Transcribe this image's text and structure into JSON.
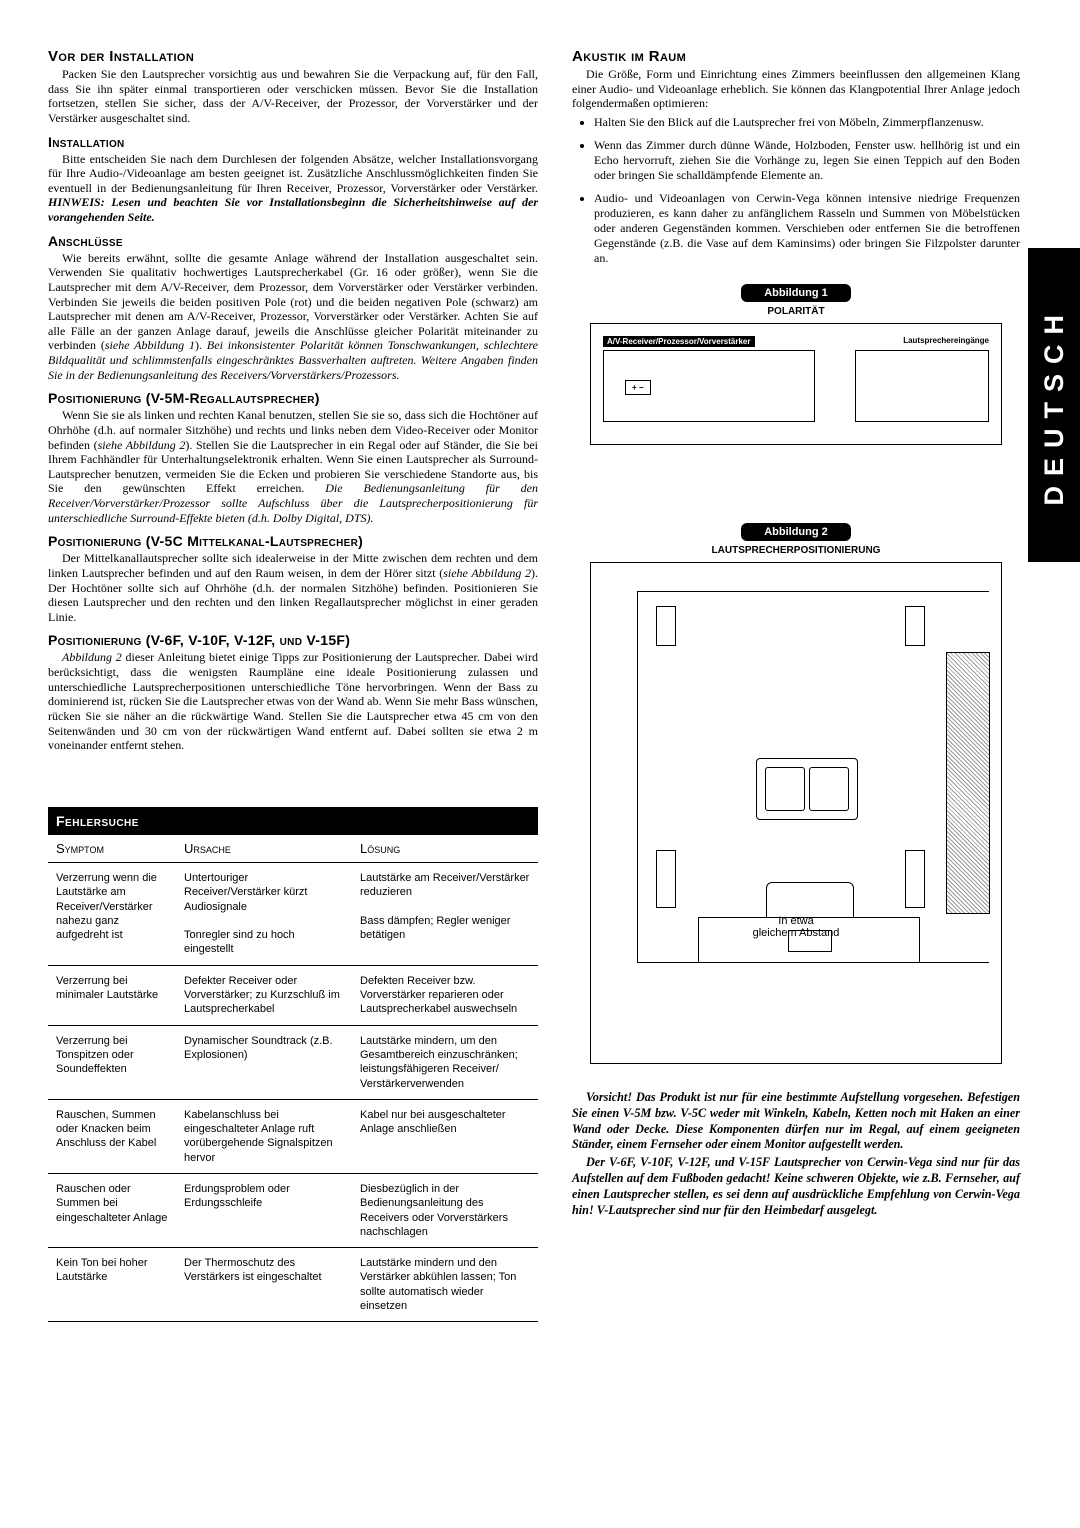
{
  "sidetab": "DEUTSCH",
  "left": {
    "h_vor": "Vor der Installation",
    "p_vor": "Packen Sie den Lautsprecher vorsichtig aus und bewahren Sie die Verpackung auf, für den Fall, dass Sie ihn später einmal transportieren oder verschicken müssen. Bevor Sie die Installation fortsetzen, stellen Sie sicher, dass der A/V-Receiver, der Prozessor, der Vorverstärker und der Verstärker ausgeschaltet sind.",
    "h_inst": "Installation",
    "p_inst_a": "Bitte entscheiden Sie nach dem Durchlesen der folgenden Absätze, welcher Installationsvorgang für Ihre Audio-/Videoanlage am besten geeignet ist. Zusätzliche Anschlussmöglichkeiten finden Sie eventuell in der Bedienungsanleitung für Ihren Receiver, Prozessor, Vorverstärker oder Verstärker. ",
    "p_inst_b": "HINWEIS: Lesen und beachten Sie vor Installationsbeginn die Sicherheitshinweise auf der vorangehenden Seite.",
    "h_ans": "Anschlüsse",
    "p_ans_a": "Wie bereits erwähnt, sollte die gesamte Anlage während der Installation ausgeschaltet sein. Verwenden Sie qualitativ hochwertiges Lautsprecherkabel (Gr. 16 oder größer), wenn Sie die Lautsprecher mit dem A/V-Receiver, dem Prozessor, dem Vorverstärker oder Verstärker verbinden. Verbinden Sie jeweils die beiden positiven Pole (rot) und die beiden negativen Pole (schwarz) am Lautsprecher mit denen am A/V-Receiver, Prozessor, Vorverstärker oder Verstärker. Achten Sie auf alle Fälle an der ganzen Anlage darauf, jeweils die Anschlüsse gleicher Polarität miteinander zu verbinden (",
    "p_ans_see": "siehe Abbildung 1",
    "p_ans_b": "). ",
    "p_ans_c": "Bei inkonsistenter Polarität können Tonschwankungen, schlechtere Bildqualität und schlimmstenfalls eingeschränktes Bassverhalten auftreten. Weitere Angaben finden Sie in der Bedienungsanleitung des Receivers/Vorverstärkers/Prozessors.",
    "h_pos5m": "Positionierung (V-5M-Regallautsprecher)",
    "p_pos5m_a": "Wenn Sie sie als linken und rechten Kanal benutzen, stellen Sie sie so, dass sich die Hochtöner auf Ohrhöhe (d.h. auf normaler Sitzhöhe) und rechts und links neben dem Video-Receiver oder Monitor befinden (",
    "p_pos5m_see": "siehe Abbildung 2",
    "p_pos5m_b": "). Stellen Sie die Lautsprecher in ein Regal oder auf Ständer, die Sie bei Ihrem Fachhändler für Unterhaltungselektronik erhalten. Wenn Sie einen Lautsprecher als Surround-Lautsprecher benutzen, vermeiden Sie die Ecken und probieren Sie verschiedene Standorte aus, bis Sie den gewünschten Effekt erreichen. ",
    "p_pos5m_c": "Die Bedienungsanleitung für den Receiver/Vorverstärker/Prozessor sollte Aufschluss über die Lautsprecherpositionierung für unterschiedliche Surround-Effekte bieten (d.h. Dolby Digital, DTS).",
    "h_pos5c": "Positionierung (V-5C Mittelkanal-Lautsprecher)",
    "p_pos5c_a": "Der Mittelkanallautsprecher sollte sich idealerweise in der Mitte zwischen dem rechten und dem linken Lautsprecher befinden und auf den Raum weisen, in dem der Hörer sitzt (",
    "p_pos5c_see": "siehe Abbildung 2",
    "p_pos5c_b": "). Der Hochtöner sollte sich auf Ohrhöhe (d.h. der normalen Sitzhöhe) befinden. Positionieren Sie diesen Lautsprecher und den rechten und den linken Regallautsprecher möglichst in einer geraden Linie.",
    "h_pos6f": "Positionierung (V-6F, V-10F, V-12F, und V-15F)",
    "p_pos6f_a": "Abbildung 2",
    "p_pos6f_b": " dieser Anleitung bietet einige Tipps zur Positionierung der Lautsprecher. Dabei wird berücksichtigt, dass die wenigsten Raumpläne eine ideale Positionierung zulassen und unterschiedliche Lautsprecherpositionen unterschiedliche Töne hervorbringen. Wenn der Bass zu dominierend ist, rücken Sie die Lautsprecher etwas von der Wand ab. Wenn Sie mehr Bass wünschen, rücken Sie sie näher an die rückwärtige Wand. Stellen Sie die Lautsprecher etwa 45 cm von den Seitenwänden und 30 cm von der rückwärtigen Wand entfernt auf. Dabei sollten sie etwa 2 m voneinander entfernt stehen."
  },
  "right": {
    "h_ak": "Akustik im Raum",
    "p_ak": "Die Größe, Form und Einrichtung eines Zimmers beeinflussen den allgemeinen Klang einer Audio- und Videoanlage erheblich. Sie können das Klangpotential Ihrer Anlage jedoch folgendermaßen optimieren:",
    "li1": "Halten Sie den Blick auf die Lautsprecher frei von Möbeln, Zimmerpflanzenusw.",
    "li2": "Wenn das Zimmer durch dünne Wände, Holzboden, Fenster usw. hellhörig ist und ein Echo hervorruft, ziehen Sie die Vorhänge zu, legen Sie einen Teppich auf den Boden oder bringen Sie schalldämpfende Elemente an.",
    "li3": "Audio- und Videoanlagen von Cerwin-Vega können intensive niedrige Frequenzen produzieren, es kann daher zu anfänglichem Rasseln und Summen von Möbelstücken oder anderen Gegenständen kommen. Verschieben oder entfernen Sie die betroffenen Gegenstände (z.B. die Vase auf dem Kaminsims) oder bringen Sie Filzpolster darunter an.",
    "fig1_label": "Abbildung 1",
    "fig1_sub": "POLARITÄT",
    "fig1_amp": "A/V-Receiver/Prozessor/Vorverstärker",
    "fig1_spk": "Lautsprechereingänge",
    "fig1_pm": "+   −",
    "fig2_label": "Abbildung 2",
    "fig2_sub": "LAUTSPRECHERPOSITIONIERUNG",
    "fig2_cap1": "In etwa",
    "fig2_cap2": "gleichem Abstand",
    "warn1": "Vorsicht!  Das Produkt ist nur für eine bestimmte Aufstellung vorgesehen. Befestigen Sie einen V-5M bzw. V-5C weder mit Winkeln, Kabeln, Ketten noch mit Haken an einer Wand oder Decke. Diese Komponenten dürfen nur im Regal, auf einem geeigneten Ständer, einem Fernseher oder einem Monitor aufgestellt werden.",
    "warn2": "Der V-6F, V-10F, V-12F, und V-15F Lautsprecher von Cerwin-Vega sind nur für das Aufstellen auf dem Fußboden gedacht! Keine schweren Objekte, wie z.B. Fernseher, auf einen Lautsprecher stellen, es sei denn auf ausdrückliche Empfehlung von Cerwin-Vega hin! V-Lautsprecher sind nur für den Heimbedarf ausgelegt."
  },
  "table": {
    "title": "Fehlersuche",
    "h1": "Symptom",
    "h2": "Ursache",
    "h3": "Lösung",
    "rows": [
      [
        "Verzerrung wenn die Lautstärke am Receiver/Verstärker nahezu ganz aufgedreht ist",
        "Untertouriger Receiver/Verstärker kürzt Audiosignale\nTonregler sind zu hoch eingestellt",
        "Lautstärke am Receiver/Verstärker reduzieren\nBass dämpfen; Regler weniger betätigen"
      ],
      [
        "Verzerrung bei minimaler Lautstärke",
        "Defekter Receiver oder Vorverstärker; zu Kurzschluß im Lautsprecherkabel",
        "Defekten Receiver bzw. Vorverstärker reparieren oder Lautsprecherkabel auswechseln"
      ],
      [
        "Verzerrung bei Tonspitzen oder Soundeffekten",
        "Dynamischer Soundtrack (z.B. Explosionen)",
        "Lautstärke mindern, um den Gesamtbereich einzuschränken; leistungsfähigeren Receiver/ Verstärkerverwenden"
      ],
      [
        "Rauschen, Summen oder Knacken beim Anschluss der Kabel",
        "Kabelanschluss bei eingeschalteter Anlage ruft vorübergehende Signalspitzen hervor",
        "Kabel nur bei ausgeschalteter Anlage anschließen"
      ],
      [
        "Rauschen oder Summen bei eingeschalteter Anlage",
        "Erdungsproblem oder Erdungsschleife",
        "Diesbezüglich in der Bedienungsanleitung des Receivers oder Vorverstärkers nachschlagen"
      ],
      [
        "Kein Ton bei hoher Lautstärke",
        "Der Thermoschutz des Verstärkers ist eingeschaltet",
        "Lautstärke mindern und den Verstärker abkühlen lassen; Ton sollte automatisch wieder einsetzen"
      ]
    ]
  }
}
